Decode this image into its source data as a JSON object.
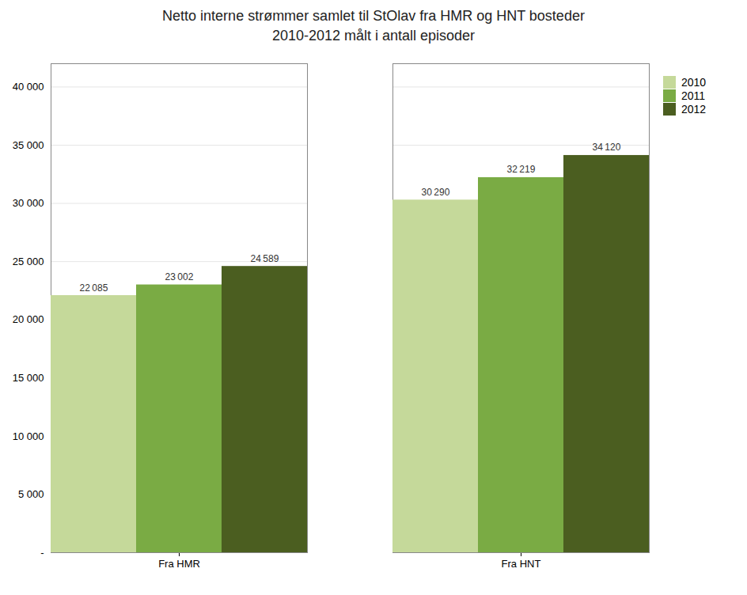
{
  "chart_data": {
    "type": "bar",
    "title": "Netto interne strømmer samlet til StOlav fra HMR og HNT bosteder",
    "subtitle": "2010-2012 målt i antall episoder",
    "categories": [
      "Fra HMR",
      "Fra HNT"
    ],
    "series": [
      {
        "name": "2010",
        "color": "#c5d99a",
        "values": [
          22085,
          30290
        ],
        "value_labels": [
          "22 085",
          "30 290"
        ]
      },
      {
        "name": "2011",
        "color": "#7aab44",
        "values": [
          23002,
          32219
        ],
        "value_labels": [
          "23 002",
          "32 219"
        ]
      },
      {
        "name": "2012",
        "color": "#4b5e20",
        "values": [
          24589,
          34120
        ],
        "value_labels": [
          "24 589",
          "34 120"
        ]
      }
    ],
    "ylim": [
      0,
      42000
    ],
    "yticks": [
      {
        "value": 0,
        "label": "-"
      },
      {
        "value": 5000,
        "label": "5 000"
      },
      {
        "value": 10000,
        "label": "10 000"
      },
      {
        "value": 15000,
        "label": "15 000"
      },
      {
        "value": 20000,
        "label": "20 000"
      },
      {
        "value": 25000,
        "label": "25 000"
      },
      {
        "value": 30000,
        "label": "30 000"
      },
      {
        "value": 35000,
        "label": "35 000"
      },
      {
        "value": 40000,
        "label": "40 000"
      }
    ],
    "grid": true,
    "legend": "upper right",
    "data_labels": true
  }
}
